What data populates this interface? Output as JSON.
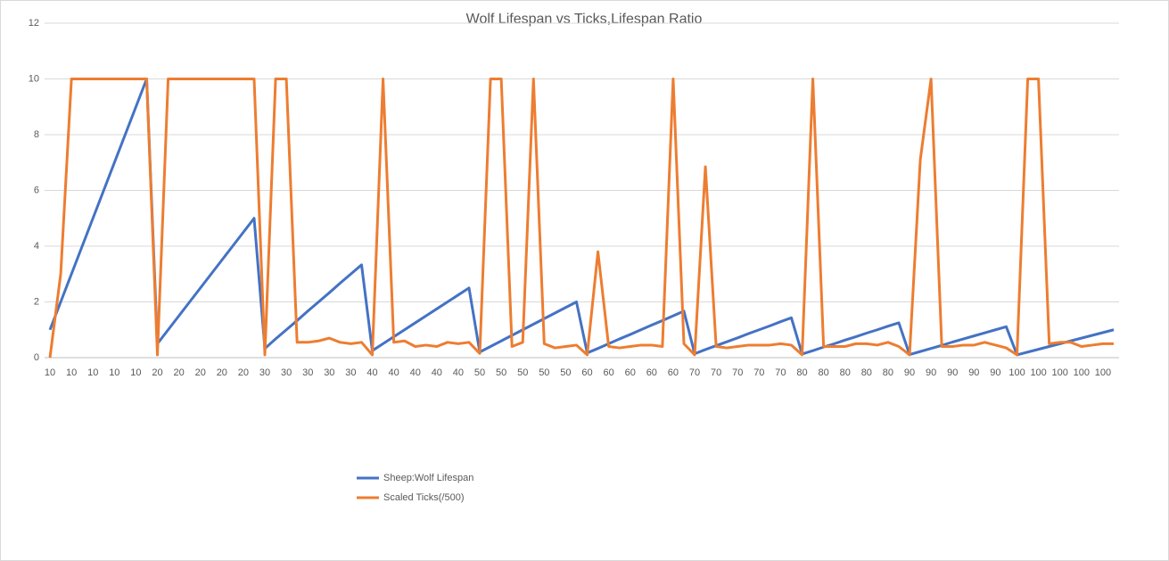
{
  "chart_data": {
    "type": "line",
    "title": "Wolf Lifespan vs Ticks,Lifespan Ratio",
    "categories": [
      "10",
      null,
      "10",
      null,
      "10",
      null,
      "10",
      null,
      "10",
      null,
      "20",
      null,
      "20",
      null,
      "20",
      null,
      "20",
      null,
      "20",
      null,
      "30",
      null,
      "30",
      null,
      "30",
      null,
      "30",
      null,
      "30",
      null,
      "40",
      null,
      "40",
      null,
      "40",
      null,
      "40",
      null,
      "40",
      null,
      "50",
      null,
      "50",
      null,
      "50",
      null,
      "50",
      null,
      "50",
      null,
      "60",
      null,
      "60",
      null,
      "60",
      null,
      "60",
      null,
      "60",
      null,
      "70",
      null,
      "70",
      null,
      "70",
      null,
      "70",
      null,
      "70",
      null,
      "80",
      null,
      "80",
      null,
      "80",
      null,
      "80",
      null,
      "80",
      null,
      "90",
      null,
      "90",
      null,
      "90",
      null,
      "90",
      null,
      "90",
      null,
      "100",
      null,
      "100",
      null,
      "100",
      null,
      "100",
      null,
      "100",
      null
    ],
    "series": [
      {
        "name": "Sheep:Wolf Lifespan",
        "color": "#4472c4",
        "values": [
          1,
          2,
          3,
          4,
          5,
          6,
          7,
          8,
          9,
          10,
          0.5,
          1,
          1.5,
          2,
          2.5,
          3,
          3.5,
          4,
          4.5,
          5,
          0.33,
          0.67,
          1,
          1.33,
          1.67,
          2,
          2.33,
          2.67,
          3,
          3.33,
          0.25,
          0.5,
          0.75,
          1,
          1.25,
          1.5,
          1.75,
          2,
          2.25,
          2.5,
          0.2,
          0.4,
          0.6,
          0.8,
          1,
          1.2,
          1.4,
          1.6,
          1.8,
          2,
          0.17,
          0.33,
          0.5,
          0.67,
          0.83,
          1,
          1.17,
          1.33,
          1.5,
          1.67,
          0.14,
          0.29,
          0.43,
          0.57,
          0.71,
          0.86,
          1,
          1.14,
          1.29,
          1.43,
          0.13,
          0.25,
          0.38,
          0.5,
          0.63,
          0.75,
          0.88,
          1,
          1.13,
          1.25,
          0.11,
          0.22,
          0.33,
          0.44,
          0.56,
          0.67,
          0.78,
          0.89,
          1,
          1.11,
          0.1,
          0.2,
          0.3,
          0.4,
          0.5,
          0.6,
          0.7,
          0.8,
          0.9,
          1
        ]
      },
      {
        "name": "Scaled Ticks(/500)",
        "color": "#ed7d31",
        "values": [
          0,
          3,
          10,
          10,
          10,
          10,
          10,
          10,
          10,
          10,
          0.1,
          10,
          10,
          10,
          10,
          10,
          10,
          10,
          10,
          10,
          0.1,
          10,
          10,
          0.55,
          0.55,
          0.6,
          0.7,
          0.55,
          0.5,
          0.55,
          0.1,
          10,
          0.55,
          0.6,
          0.4,
          0.45,
          0.4,
          0.55,
          0.5,
          0.55,
          0.15,
          10,
          10,
          0.4,
          0.55,
          10,
          0.5,
          0.35,
          0.4,
          0.45,
          0.1,
          3.8,
          0.4,
          0.35,
          0.4,
          0.45,
          0.45,
          0.4,
          10,
          0.5,
          0.1,
          6.85,
          0.4,
          0.35,
          0.4,
          0.45,
          0.45,
          0.45,
          0.5,
          0.45,
          0.1,
          10,
          0.4,
          0.4,
          0.4,
          0.5,
          0.5,
          0.45,
          0.55,
          0.4,
          0.1,
          7.1,
          10,
          0.4,
          0.4,
          0.45,
          0.45,
          0.55,
          0.45,
          0.35,
          0.1,
          10,
          10,
          0.5,
          0.55,
          0.55,
          0.4,
          0.45,
          0.5,
          0.5
        ]
      }
    ],
    "ylim": [
      0,
      12
    ],
    "yticks": [
      0,
      2,
      4,
      6,
      8,
      10,
      12
    ],
    "grid": true,
    "legend": "bottom"
  }
}
